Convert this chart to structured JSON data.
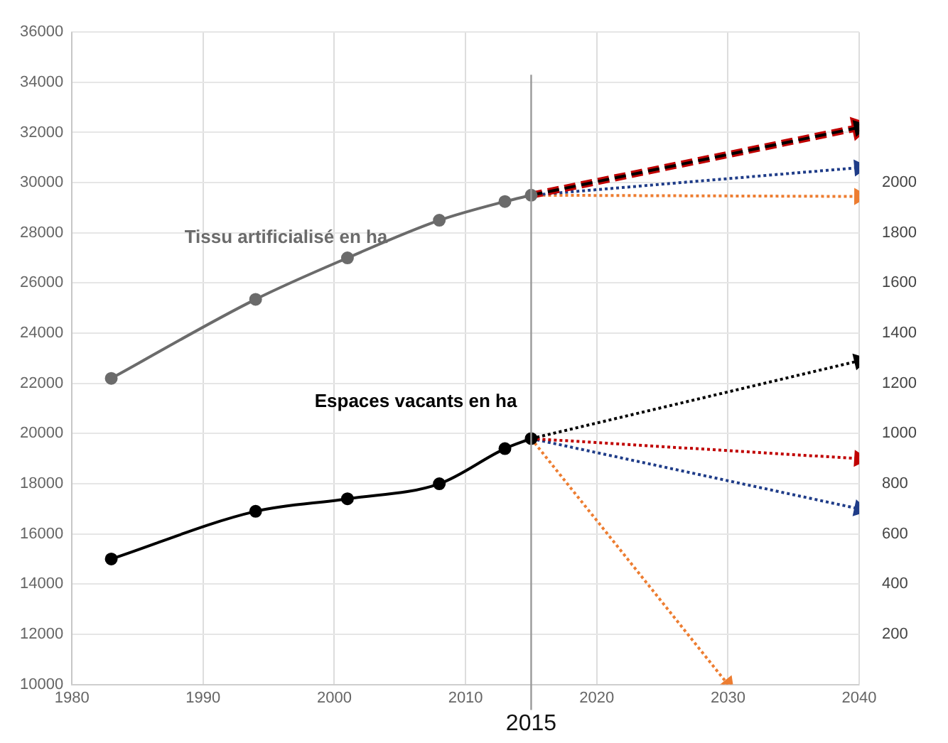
{
  "chart_data": {
    "type": "line",
    "xlim": [
      1980,
      2040
    ],
    "xticks": [
      1980,
      1990,
      2000,
      2010,
      2020,
      2030,
      2040
    ],
    "ylim": [
      10000,
      36000
    ],
    "yticks": [
      10000,
      12000,
      14000,
      16000,
      18000,
      20000,
      22000,
      24000,
      26000,
      28000,
      30000,
      32000,
      34000,
      36000
    ],
    "y2lim": [
      0,
      2600
    ],
    "y2ticks": [
      200,
      400,
      600,
      800,
      1000,
      1200,
      1400,
      1600,
      1800,
      2000
    ],
    "grid": true,
    "legend": false,
    "series": [
      {
        "name": "Tissu artificialisé en ha",
        "color": "#6b6b6b",
        "x": [
          1983,
          1994,
          2001,
          2008,
          2013,
          2015
        ],
        "values": [
          22200,
          25350,
          27000,
          28500,
          29250,
          29500
        ],
        "marker": "circle",
        "line_style": "solid"
      },
      {
        "color": "#000000",
        "x": [
          2015,
          2040
        ],
        "values": [
          29500,
          32200
        ],
        "marker": "triangle",
        "line_style": "dashed"
      },
      {
        "color": "#c00000",
        "x": [
          2015,
          2040
        ],
        "values": [
          29500,
          32200
        ],
        "marker": "triangle",
        "line_style": "dashed"
      },
      {
        "color": "#1f3c88",
        "x": [
          2015,
          2040
        ],
        "values": [
          29500,
          30600
        ],
        "marker": "triangle",
        "line_style": "dotted"
      },
      {
        "color": "#ed7d31",
        "x": [
          2015,
          2040
        ],
        "values": [
          29500,
          29450
        ],
        "marker": "triangle",
        "line_style": "dotted"
      },
      {
        "name": "Espaces vacants en ha",
        "color": "#000000",
        "axis": "y2",
        "x": [
          1983,
          1994,
          2001,
          2008,
          2013,
          2015
        ],
        "values": [
          500,
          690,
          740,
          800,
          940,
          980
        ],
        "marker": "circle",
        "line_style": "solid"
      },
      {
        "color": "#000000",
        "axis": "y2",
        "x": [
          2015,
          2040
        ],
        "values": [
          980,
          1290
        ],
        "marker": "triangle",
        "line_style": "dotted"
      },
      {
        "color": "#c00000",
        "axis": "y2",
        "x": [
          2015,
          2040
        ],
        "values": [
          980,
          900
        ],
        "marker": "triangle",
        "line_style": "dotted"
      },
      {
        "color": "#1f3c88",
        "axis": "y2",
        "x": [
          2015,
          2040
        ],
        "values": [
          980,
          700
        ],
        "marker": "triangle",
        "line_style": "dotted"
      },
      {
        "color": "#ed7d31",
        "axis": "y2",
        "x": [
          2015,
          2030
        ],
        "values": [
          980,
          0
        ],
        "marker": "triangle",
        "line_style": "dotted"
      }
    ],
    "ref_lines": [
      {
        "axis": "x",
        "value": 2015,
        "label": "2015",
        "color": "#999999"
      }
    ]
  }
}
